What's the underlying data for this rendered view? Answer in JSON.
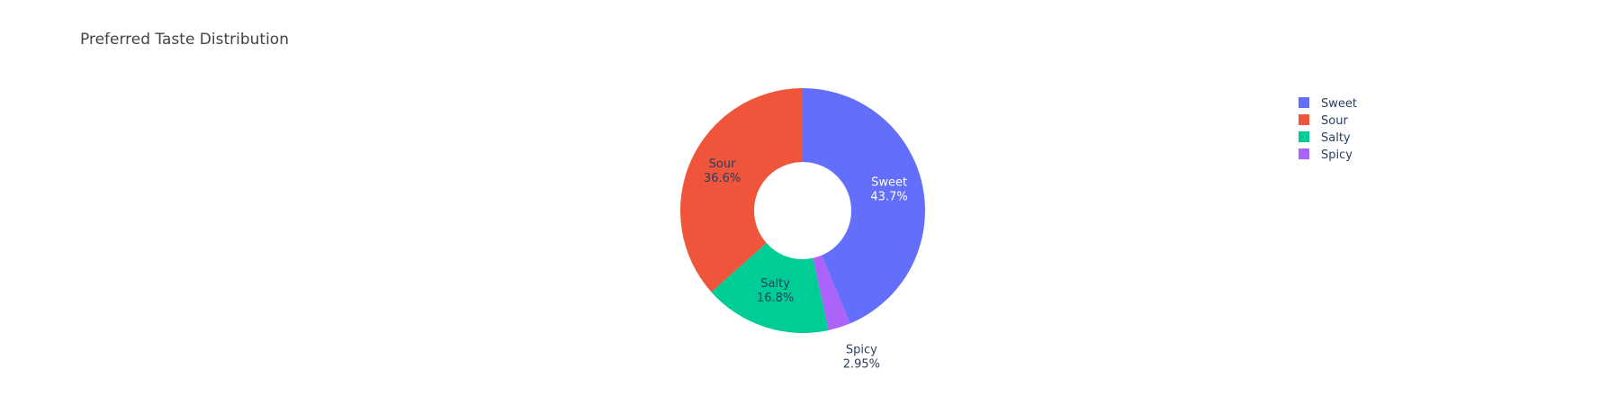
{
  "chart_data": {
    "type": "pie",
    "title": "Preferred Taste Distribution",
    "hole": true,
    "slices": [
      {
        "label": "Sweet",
        "percent_label": "43.7%",
        "value": 43.7,
        "color": "#636efa",
        "text_color": "#ffffff"
      },
      {
        "label": "Spicy",
        "percent_label": "2.95%",
        "value": 2.95,
        "color": "#ab63fa",
        "text_color": "#2a3f5f"
      },
      {
        "label": "Salty",
        "percent_label": "16.8%",
        "value": 16.8,
        "color": "#00cc96",
        "text_color": "#2a3f5f"
      },
      {
        "label": "Sour",
        "percent_label": "36.6%",
        "value": 36.6,
        "color": "#ef553b",
        "text_color": "#2a3f5f"
      }
    ],
    "legend": {
      "placement": "top-right",
      "items": [
        {
          "label": "Sweet",
          "color": "#636efa"
        },
        {
          "label": "Sour",
          "color": "#ef553b"
        },
        {
          "label": "Salty",
          "color": "#00cc96"
        },
        {
          "label": "Spicy",
          "color": "#ab63fa"
        }
      ]
    }
  }
}
